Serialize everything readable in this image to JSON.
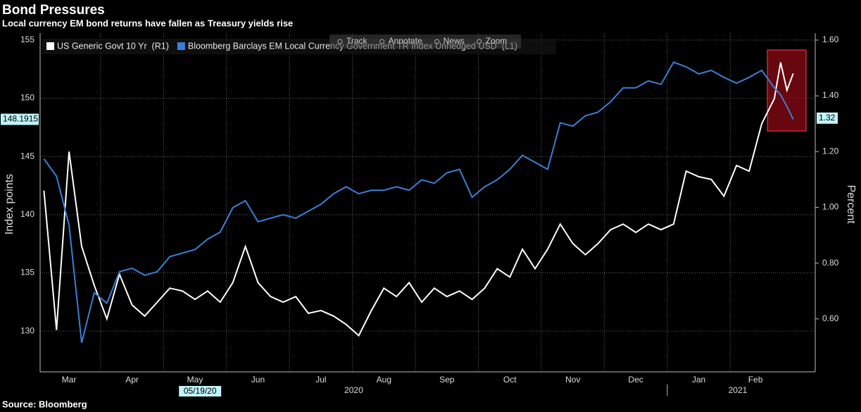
{
  "chart_data": {
    "type": "line",
    "title": "Bond Pressures",
    "subtitle": "Local currency EM bond returns have fallen as Treasury yields rise",
    "source": "Source: Bloomberg",
    "ylabel": "Index points",
    "y2label": "Percent",
    "toolbar": [
      "Track",
      "Annotate",
      "News",
      "Zoom"
    ],
    "x": [
      2.1,
      2.3,
      2.5,
      2.7,
      2.9,
      3.1,
      3.3,
      3.5,
      3.7,
      3.9,
      4.1,
      4.3,
      4.5,
      4.7,
      4.9,
      5.1,
      5.3,
      5.5,
      5.7,
      5.9,
      6.1,
      6.3,
      6.5,
      6.7,
      6.9,
      7.1,
      7.3,
      7.5,
      7.7,
      7.9,
      8.1,
      8.3,
      8.5,
      8.7,
      8.9,
      9.1,
      9.3,
      9.5,
      9.7,
      9.9,
      10.1,
      10.3,
      10.5,
      10.7,
      10.9,
      11.1,
      11.3,
      11.5,
      11.7,
      11.9,
      12.1,
      12.3,
      12.5,
      12.7,
      12.9,
      13.1,
      13.3,
      13.5,
      13.7,
      13.8,
      13.9,
      14.0
    ],
    "series": [
      {
        "name": "US Generic Govt 10 Yr  (R1)",
        "color": "#ffffff",
        "axis": "y2",
        "values": [
          1.06,
          0.56,
          1.2,
          0.86,
          0.72,
          0.6,
          0.76,
          0.65,
          0.61,
          0.66,
          0.71,
          0.7,
          0.67,
          0.7,
          0.66,
          0.73,
          0.86,
          0.73,
          0.68,
          0.66,
          0.68,
          0.62,
          0.63,
          0.61,
          0.58,
          0.54,
          0.63,
          0.71,
          0.68,
          0.73,
          0.66,
          0.71,
          0.68,
          0.7,
          0.67,
          0.71,
          0.78,
          0.75,
          0.85,
          0.78,
          0.85,
          0.94,
          0.87,
          0.83,
          0.87,
          0.92,
          0.94,
          0.91,
          0.94,
          0.92,
          0.94,
          1.13,
          1.11,
          1.1,
          1.04,
          1.15,
          1.13,
          1.3,
          1.39,
          1.52,
          1.42,
          1.48
        ]
      },
      {
        "name": "Bloomberg Barclays EM Local Currency Government TR Index Unhedged USD  (L1)",
        "color": "#3a7fd5",
        "values": [
          144.8,
          143.3,
          139.1,
          129.0,
          133.3,
          132.4,
          135.1,
          135.4,
          134.8,
          135.1,
          136.4,
          136.7,
          137.0,
          137.9,
          138.5,
          140.6,
          141.2,
          139.4,
          139.7,
          140.0,
          139.7,
          140.3,
          140.9,
          141.8,
          142.4,
          141.8,
          142.1,
          142.1,
          142.4,
          142.1,
          143.0,
          142.7,
          143.6,
          143.9,
          141.5,
          142.4,
          143.0,
          143.9,
          145.1,
          144.5,
          143.9,
          147.9,
          147.6,
          148.5,
          148.8,
          149.7,
          150.9,
          150.9,
          151.5,
          151.2,
          153.1,
          152.7,
          152.1,
          152.4,
          151.8,
          151.3,
          151.8,
          152.4,
          150.9,
          150.3,
          149.3,
          148.2
        ]
      }
    ],
    "xlim": [
      2.04,
      14.35
    ],
    "xticks": [
      {
        "value": 2.5,
        "label": "Mar"
      },
      {
        "value": 3.5,
        "label": "Apr"
      },
      {
        "value": 4.5,
        "label": "May"
      },
      {
        "value": 5.5,
        "label": "Jun"
      },
      {
        "value": 6.5,
        "label": "Jul"
      },
      {
        "value": 7.5,
        "label": "Aug"
      },
      {
        "value": 8.5,
        "label": "Sep"
      },
      {
        "value": 9.5,
        "label": "Oct"
      },
      {
        "value": 10.5,
        "label": "Nov"
      },
      {
        "value": 11.5,
        "label": "Dec"
      },
      {
        "value": 12.5,
        "label": "Jan"
      },
      {
        "value": 13.4,
        "label": "Feb"
      }
    ],
    "xgrid": [
      3,
      4,
      5,
      6,
      7,
      8,
      9,
      10,
      11,
      12,
      13
    ],
    "year_labels": [
      {
        "value": 7.02,
        "label": "2020"
      },
      {
        "value": 13.12,
        "label": "2021"
      }
    ],
    "crosshair": {
      "value": 4.58,
      "label": "05/19/20"
    },
    "ylim": [
      126.5,
      155.6
    ],
    "yticks": [
      130,
      135,
      140,
      145,
      150,
      155
    ],
    "y2lim": [
      0.41,
      1.625
    ],
    "y2ticks": [
      {
        "value": 0.6,
        "label": "0.60"
      },
      {
        "value": 0.8,
        "label": "0.80"
      },
      {
        "value": 1.0,
        "label": "1.00"
      },
      {
        "value": 1.2,
        "label": "1.20"
      },
      {
        "value": 1.4,
        "label": "1.40"
      },
      {
        "value": 1.6,
        "label": "1.60"
      }
    ],
    "y_marker": 148.1915,
    "y2_marker": 1.32,
    "grid": true
  }
}
